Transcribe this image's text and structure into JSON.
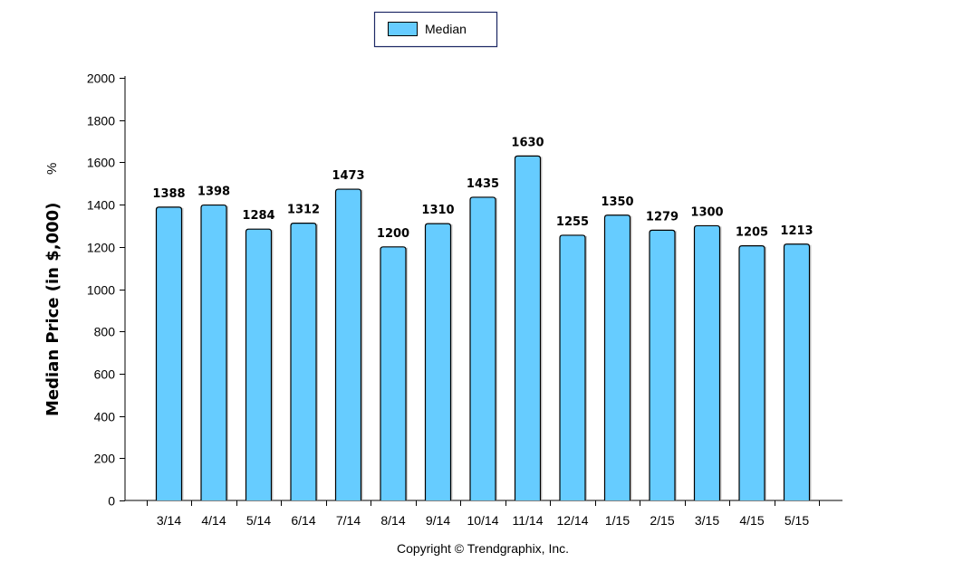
{
  "chart_data": {
    "type": "bar",
    "categories": [
      "3/14",
      "4/14",
      "5/14",
      "6/14",
      "7/14",
      "8/14",
      "9/14",
      "10/14",
      "11/14",
      "12/14",
      "1/15",
      "2/15",
      "3/15",
      "4/15",
      "5/15"
    ],
    "series": [
      {
        "name": "Median",
        "values": [
          1388,
          1398,
          1284,
          1312,
          1473,
          1200,
          1310,
          1435,
          1630,
          1255,
          1350,
          1279,
          1300,
          1205,
          1213
        ]
      }
    ],
    "ylabel": "Median Price (in $,000)",
    "ylabel_suffix": "%",
    "ylim": [
      0,
      2000
    ],
    "yticks": [
      0,
      200,
      400,
      600,
      800,
      1000,
      1200,
      1400,
      1600,
      1800,
      2000
    ],
    "grid": false,
    "legend_position": "top-center",
    "bar_color": "#66CCFF"
  },
  "footer": {
    "copyright": "Copyright © Trendgraphix, Inc."
  }
}
